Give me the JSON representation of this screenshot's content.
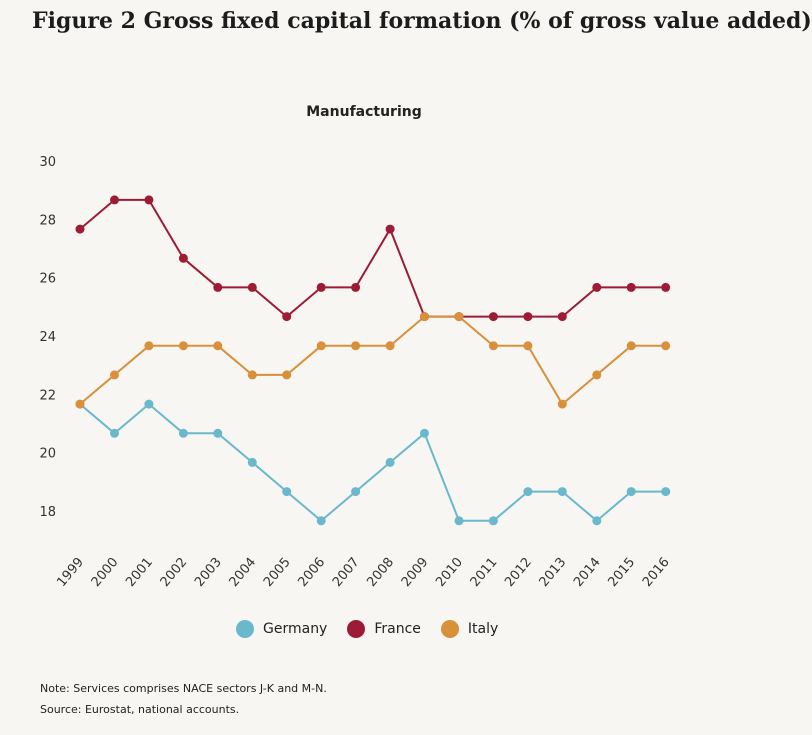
{
  "figure_title": "Figure 2 Gross fixed capital formation (% of gross value added)",
  "chart_data": {
    "type": "line",
    "title": "Manufacturing",
    "categories": [
      "1999",
      "2000",
      "2001",
      "2002",
      "2003",
      "2004",
      "2005",
      "2006",
      "2007",
      "2008",
      "2009",
      "2010",
      "2011",
      "2012",
      "2013",
      "2014",
      "2015",
      "2016"
    ],
    "ylim": [
      16.5,
      30
    ],
    "yticks": [
      18,
      20,
      22,
      24,
      26,
      28,
      30
    ],
    "xlabel": "",
    "ylabel": "",
    "legend_position": "bottom",
    "series": [
      {
        "name": "Germany",
        "color": "#6bb8cc",
        "values": [
          21.7,
          20.7,
          21.7,
          20.7,
          20.7,
          19.7,
          18.7,
          17.7,
          18.7,
          19.7,
          20.7,
          17.7,
          17.7,
          18.7,
          18.7,
          17.7,
          18.7,
          18.7
        ]
      },
      {
        "name": "France",
        "color": "#9e1b36",
        "values": [
          27.7,
          28.7,
          28.7,
          26.7,
          25.7,
          25.7,
          24.7,
          25.7,
          25.7,
          27.7,
          24.7,
          24.7,
          24.7,
          24.7,
          24.7,
          25.7,
          25.7,
          25.7
        ]
      },
      {
        "name": "Italy",
        "color": "#d8903a",
        "values": [
          21.7,
          22.7,
          23.7,
          23.7,
          23.7,
          22.7,
          22.7,
          23.7,
          23.7,
          23.7,
          24.7,
          24.7,
          23.7,
          23.7,
          21.7,
          22.7,
          23.7,
          23.7
        ]
      }
    ]
  },
  "notes": {
    "note": "Note: Services comprises NACE sectors J-K and M-N.",
    "source": "Source: Eurostat, national accounts."
  }
}
